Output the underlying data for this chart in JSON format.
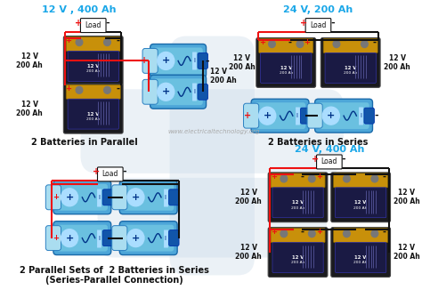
{
  "background_color": "#ffffff",
  "label_cyan": "#1aa7e8",
  "wire_red": "#ee1111",
  "wire_black": "#111111",
  "battery_blue_light": "#7ec8e3",
  "battery_blue_dark": "#2a7fc1",
  "battery_body": "#4da6d8",
  "battery_cap_light": "#aaddf0",
  "battery_dark": "#1a1a1e",
  "battery_gold": "#c8900a",
  "battery_label_bg": "#1a1a44",
  "watermark": "www.electricaltechnology.org",
  "sections": [
    {
      "title": "12 V , 400 Ah",
      "label": "2 Batteries in Parallel"
    },
    {
      "title": "24 V, 200 Ah",
      "label": "2 Batteries in Series"
    },
    {
      "title": "24 V, 400 Ah",
      "label": "2 Parallel Sets of  2 Batteries in Series\n(Series-Parallel Connection)"
    }
  ],
  "figsize": [
    4.74,
    3.44
  ],
  "dpi": 100
}
